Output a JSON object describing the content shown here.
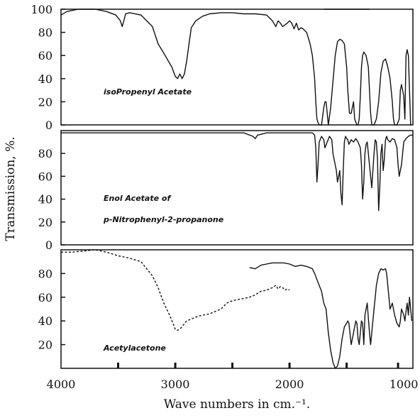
{
  "chart_data": {
    "type": "line",
    "xlabel": "Wave numbers in cm.⁻¹.",
    "ylabel": "Transmission, %.",
    "x_ticks": [
      4000,
      3000,
      2000,
      1000
    ],
    "xlim": [
      4000,
      920
    ],
    "axis_line_color": "#111111",
    "panels": [
      {
        "name": "isoPropenyl Acetate",
        "ylim": [
          0,
          100
        ],
        "y_ticks": [
          0,
          20,
          40,
          60,
          80,
          100
        ],
        "series": [
          {
            "style": "solid",
            "x": [
              4000,
              3950,
              3850,
              3700,
              3600,
              3520,
              3480,
              3465,
              3450,
              3435,
              3400,
              3300,
              3250,
              3200,
              3150,
              3100,
              3060,
              3030,
              3000,
              2980,
              2960,
              2940,
              2920,
              2900,
              2880,
              2860,
              2820,
              2760,
              2700,
              2600,
              2500,
              2400,
              2300,
              2200,
              2150,
              2120,
              2100,
              2080,
              2060,
              2020,
              2000,
              1980,
              1960,
              1940,
              1920,
              1900,
              1880,
              1850,
              1820,
              1800,
              1780,
              1770,
              1760,
              1750,
              1740,
              1730,
              1720,
              1700,
              1690,
              1680,
              1670,
              1660,
              1640,
              1600,
              1580,
              1560,
              1540,
              1520,
              1500,
              1490,
              1475,
              1460,
              1440,
              1430,
              1410,
              1400,
              1390,
              1380,
              1370,
              1360,
              1350,
              1330,
              1310,
              1300,
              1290,
              1280,
              1270,
              1260,
              1240,
              1220,
              1200,
              1180,
              1160,
              1140,
              1120,
              1100,
              1090,
              1080,
              1060,
              1040,
              1030,
              1020,
              1000,
              990,
              980,
              970,
              960,
              950,
              940,
              930
            ],
            "y": [
              95,
              98,
              100,
              100,
              98,
              95,
              90,
              85,
              90,
              96,
              97,
              95,
              90,
              85,
              70,
              62,
              55,
              50,
              42,
              40,
              44,
              40,
              44,
              55,
              70,
              84,
              90,
              94,
              96,
              97,
              97,
              96,
              96,
              95,
              90,
              85,
              90,
              88,
              85,
              88,
              90,
              88,
              83,
              88,
              82,
              84,
              83,
              80,
              70,
              60,
              40,
              20,
              5,
              2,
              0,
              0,
              0,
              15,
              20,
              20,
              10,
              0,
              15,
              60,
              72,
              74,
              73,
              70,
              50,
              30,
              10,
              10,
              20,
              5,
              0,
              0,
              5,
              25,
              50,
              60,
              63,
              60,
              50,
              30,
              10,
              0,
              0,
              0,
              5,
              20,
              45,
              55,
              57,
              50,
              40,
              20,
              5,
              0,
              0,
              5,
              30,
              35,
              25,
              5,
              60,
              65,
              60,
              30,
              0,
              0
            ]
          },
          {
            "style": "solid",
            "x": [
              1300,
              1320,
              1340,
              1360,
              1380,
              1400,
              1420,
              1440,
              1460,
              1480,
              1500,
              1520,
              1540,
              1560,
              1580,
              1600,
              1620,
              1640,
              1660,
              1680,
              1700
            ],
            "y": [
              100,
              100,
              100,
              100,
              100,
              100,
              100,
              100,
              100,
              100,
              100,
              100,
              100,
              100,
              100,
              100,
              100,
              100,
              100,
              100,
              100
            ]
          }
        ]
      },
      {
        "name": "Enol Acetate of p-Nitrophenyl-2-propanone",
        "label_lines": [
          "Enol Acetate of",
          "p-Nitrophenyl-2-propanone"
        ],
        "ylim": [
          0,
          100
        ],
        "y_ticks": [
          0,
          20,
          40,
          60,
          80
        ],
        "series": [
          {
            "style": "solid",
            "x": [
              4000,
              3600,
              3200,
              2800,
              2400,
              2320,
              2300,
              2280,
              2200,
              2000,
              1900,
              1800,
              1780,
              1770,
              1760,
              1750,
              1740,
              1720,
              1700,
              1690,
              1670,
              1650,
              1630,
              1620,
              1600,
              1590,
              1580,
              1570,
              1560,
              1550,
              1540,
              1530,
              1520,
              1510,
              1500,
              1490,
              1480,
              1460,
              1440,
              1420,
              1400,
              1380,
              1370,
              1360,
              1350,
              1340,
              1330,
              1320,
              1300,
              1280,
              1260,
              1250,
              1240,
              1230,
              1220,
              1210,
              1200,
              1190,
              1180,
              1170,
              1160,
              1150,
              1140,
              1120,
              1100,
              1080,
              1060,
              1050,
              1040,
              1030,
              1020,
              1010,
              1000,
              980,
              960,
              940,
              920
            ],
            "y": [
              98,
              98,
              98,
              98,
              98,
              95,
              93,
              96,
              98,
              98,
              98,
              98,
              96,
              85,
              55,
              70,
              90,
              95,
              92,
              85,
              90,
              95,
              92,
              80,
              70,
              65,
              55,
              60,
              65,
              45,
              35,
              65,
              90,
              95,
              93,
              92,
              88,
              92,
              90,
              93,
              90,
              85,
              70,
              40,
              55,
              80,
              88,
              90,
              70,
              50,
              80,
              92,
              90,
              75,
              30,
              50,
              80,
              88,
              65,
              75,
              92,
              95,
              92,
              90,
              93,
              92,
              85,
              70,
              60,
              65,
              70,
              80,
              90,
              93,
              95,
              96,
              96
            ]
          }
        ]
      },
      {
        "name": "Acetylacetone",
        "ylim": [
          0,
          100
        ],
        "y_ticks": [
          20,
          40,
          60,
          80
        ],
        "series": [
          {
            "style": "dashed",
            "x": [
              4000,
              3900,
              3800,
              3700,
              3600,
              3500,
              3400,
              3300,
              3200,
              3150,
              3100,
              3050,
              3020,
              3000,
              2980,
              2950,
              2900,
              2850,
              2800,
              2700,
              2600,
              2550,
              2500,
              2450,
              2400,
              2350,
              2300,
              2250,
              2200,
              2150,
              2120,
              2100,
              2080,
              2060,
              2040,
              2020,
              2000
            ],
            "y": [
              98,
              98,
              99,
              100,
              98,
              95,
              93,
              90,
              78,
              68,
              55,
              45,
              38,
              33,
              32,
              34,
              40,
              42,
              44,
              46,
              50,
              55,
              57,
              58,
              59,
              60,
              62,
              65,
              66,
              68,
              70,
              67,
              69,
              68,
              66,
              67,
              66
            ]
          },
          {
            "style": "solid",
            "x": [
              2350,
              2300,
              2250,
              2200,
              2150,
              2100,
              2050,
              2000,
              1950,
              1900,
              1850,
              1800,
              1780,
              1760,
              1740,
              1720,
              1700,
              1680,
              1660,
              1640,
              1620,
              1600,
              1580,
              1560,
              1540,
              1520,
              1500,
              1490,
              1480,
              1460,
              1440,
              1430,
              1420,
              1410,
              1400,
              1390,
              1380,
              1370,
              1360,
              1350,
              1340,
              1320,
              1300,
              1290,
              1280,
              1260,
              1250,
              1240,
              1220,
              1200,
              1180,
              1160,
              1150,
              1140,
              1120,
              1100,
              1080,
              1060,
              1040,
              1030,
              1020,
              1000,
              990,
              980,
              970,
              960,
              950,
              940,
              930
            ],
            "y": [
              85,
              84,
              87,
              88,
              89,
              89,
              89,
              88,
              86,
              87,
              86,
              84,
              80,
              75,
              70,
              65,
              55,
              50,
              30,
              15,
              5,
              0,
              2,
              10,
              25,
              35,
              38,
              40,
              38,
              20,
              30,
              35,
              40,
              38,
              25,
              20,
              30,
              40,
              38,
              20,
              45,
              55,
              30,
              20,
              30,
              50,
              60,
              70,
              80,
              84,
              83,
              84,
              80,
              70,
              50,
              55,
              45,
              38,
              35,
              40,
              50,
              45,
              40,
              48,
              55,
              45,
              60,
              50,
              40
            ]
          }
        ]
      }
    ]
  }
}
